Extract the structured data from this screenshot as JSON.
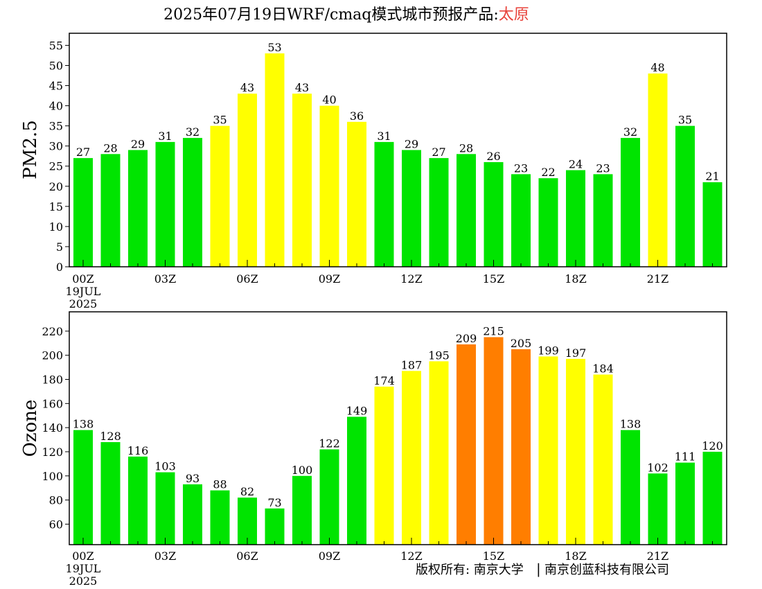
{
  "header": {
    "title_main": "2025年07月19日WRF/cmaq模式城市预报产品:",
    "title_city": "太原",
    "city_color": "#e8423a"
  },
  "footer": {
    "copyright": "版权所有: 南京大学",
    "separator": "|",
    "company": "南京创蓝科技有限公司"
  },
  "colors": {
    "good": "#00e400",
    "moderate": "#ffff00",
    "unhealthy_sensitive": "#ff7e00"
  },
  "chart_data": [
    {
      "type": "bar",
      "ylabel": "PM2.5",
      "ylim": [
        0,
        58
      ],
      "yticks": [
        0,
        5,
        10,
        15,
        20,
        25,
        30,
        35,
        40,
        45,
        50,
        55
      ],
      "hours": [
        0,
        1,
        2,
        3,
        4,
        5,
        6,
        7,
        8,
        9,
        10,
        11,
        12,
        13,
        14,
        15,
        16,
        17,
        18,
        19,
        20,
        21,
        22,
        23
      ],
      "values": [
        27,
        28,
        29,
        31,
        32,
        35,
        43,
        53,
        43,
        40,
        36,
        31,
        29,
        27,
        28,
        26,
        23,
        22,
        24,
        23,
        32,
        48,
        35,
        21
      ],
      "colors": [
        "good",
        "good",
        "good",
        "good",
        "good",
        "moderate",
        "moderate",
        "moderate",
        "moderate",
        "moderate",
        "moderate",
        "good",
        "good",
        "good",
        "good",
        "good",
        "good",
        "good",
        "good",
        "good",
        "good",
        "moderate",
        "good",
        "good"
      ],
      "xticks": [
        {
          "hour": 0,
          "label": "00Z"
        },
        {
          "hour": 3,
          "label": "03Z"
        },
        {
          "hour": 6,
          "label": "06Z"
        },
        {
          "hour": 9,
          "label": "09Z"
        },
        {
          "hour": 12,
          "label": "12Z"
        },
        {
          "hour": 15,
          "label": "15Z"
        },
        {
          "hour": 18,
          "label": "18Z"
        },
        {
          "hour": 21,
          "label": "21Z"
        }
      ],
      "date_label": [
        "19JUL",
        "2025"
      ],
      "grid": false,
      "legend": "none"
    },
    {
      "type": "bar",
      "ylabel": "Ozone",
      "ylim": [
        43,
        236
      ],
      "yticks": [
        60,
        80,
        100,
        120,
        140,
        160,
        180,
        200,
        220
      ],
      "hours": [
        0,
        1,
        2,
        3,
        4,
        5,
        6,
        7,
        8,
        9,
        10,
        11,
        12,
        13,
        14,
        15,
        16,
        17,
        18,
        19,
        20,
        21,
        22,
        23
      ],
      "values": [
        138,
        128,
        116,
        103,
        93,
        88,
        82,
        73,
        100,
        122,
        149,
        174,
        187,
        195,
        209,
        215,
        205,
        199,
        197,
        184,
        138,
        102,
        111,
        120
      ],
      "colors": [
        "good",
        "good",
        "good",
        "good",
        "good",
        "good",
        "good",
        "good",
        "good",
        "good",
        "good",
        "moderate",
        "moderate",
        "moderate",
        "unhealthy_sensitive",
        "unhealthy_sensitive",
        "unhealthy_sensitive",
        "moderate",
        "moderate",
        "moderate",
        "good",
        "good",
        "good",
        "good"
      ],
      "xticks": [
        {
          "hour": 0,
          "label": "00Z"
        },
        {
          "hour": 3,
          "label": "03Z"
        },
        {
          "hour": 6,
          "label": "06Z"
        },
        {
          "hour": 9,
          "label": "09Z"
        },
        {
          "hour": 12,
          "label": "12Z"
        },
        {
          "hour": 15,
          "label": "15Z"
        },
        {
          "hour": 18,
          "label": "18Z"
        },
        {
          "hour": 21,
          "label": "21Z"
        }
      ],
      "date_label": [
        "19JUL",
        "2025"
      ],
      "grid": false,
      "legend": "none"
    }
  ]
}
